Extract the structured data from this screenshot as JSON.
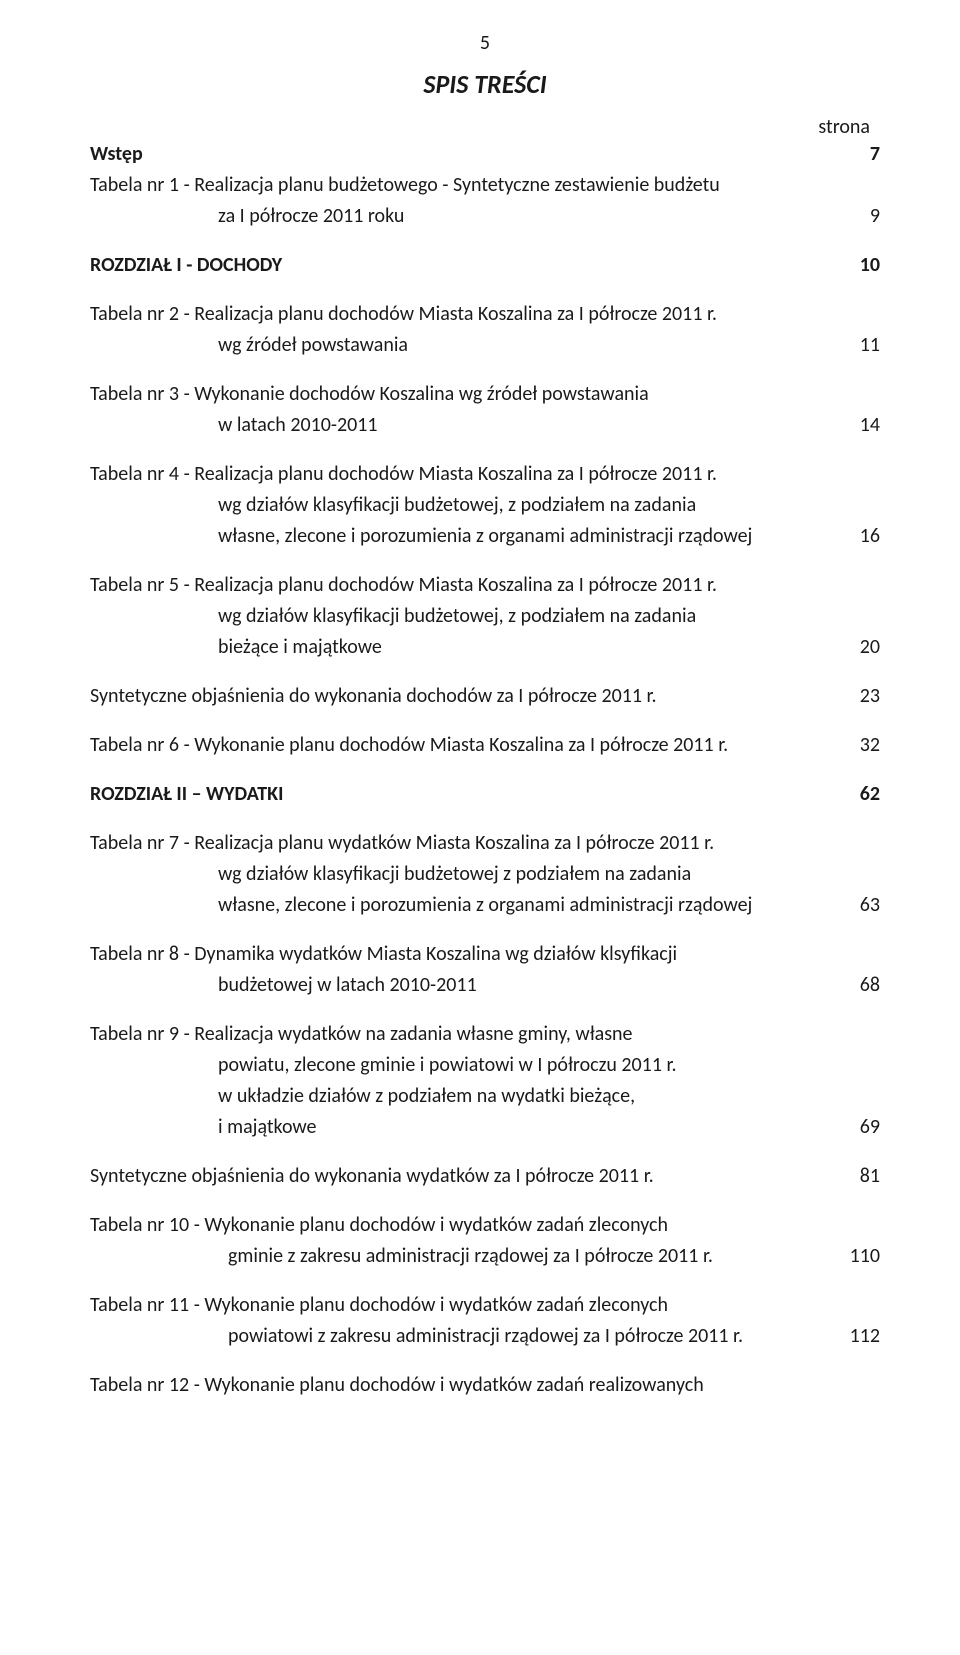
{
  "page_number_top": "5",
  "title": "SPIS TREŚCI",
  "strona_label": "strona",
  "entries": [
    {
      "text": "Wstęp",
      "page": "7",
      "bold": true
    },
    {
      "text": "Tabela nr 1 - Realizacja planu budżetowego - Syntetyczne zestawienie budżetu",
      "page": ""
    },
    {
      "text": "za I półrocze 2011 roku",
      "page": "9",
      "indent": true,
      "gap_after": true
    },
    {
      "text": "ROZDZIAŁ   I - DOCHODY",
      "page": "10",
      "bold": true,
      "gap_after": true
    },
    {
      "text": "Tabela nr 2 - Realizacja planu dochodów Miasta Koszalina za I półrocze 2011 r.",
      "page": ""
    },
    {
      "text": "wg źródeł powstawania",
      "page": "11",
      "indent": true,
      "gap_after": true
    },
    {
      "text": "Tabela nr 3 - Wykonanie dochodów Koszalina wg źródeł powstawania",
      "page": ""
    },
    {
      "text": "w latach 2010-2011",
      "page": "14",
      "indent": true,
      "gap_after": true
    },
    {
      "text": "Tabela nr 4 - Realizacja planu dochodów  Miasta Koszalina za I półrocze 2011 r.",
      "page": ""
    },
    {
      "text": "wg  działów klasyfikacji budżetowej, z podziałem na zadania",
      "page": "",
      "indent": true
    },
    {
      "text": "własne, zlecone i porozumienia z organami administracji rządowej",
      "page": "16",
      "indent": true,
      "gap_after": true
    },
    {
      "text": "Tabela nr 5 - Realizacja planu dochodów  Miasta Koszalina za I półrocze 2011 r.",
      "page": ""
    },
    {
      "text": "wg  działów klasyfikacji budżetowej, z podziałem na zadania",
      "page": "",
      "indent": true
    },
    {
      "text": "bieżące i majątkowe",
      "page": "20",
      "indent": true,
      "gap_after": true
    },
    {
      "text": "Syntetyczne objaśnienia  do  wykonania dochodów za I półrocze 2011 r.",
      "page": "23",
      "gap_after": true
    },
    {
      "text": "Tabela nr 6 - Wykonanie planu dochodów Miasta Koszalina za I półrocze  2011 r.",
      "page": "32",
      "gap_after": true
    },
    {
      "text": "ROZDZIAŁ  II – WYDATKI",
      "page": "62",
      "bold": true,
      "gap_after": true
    },
    {
      "text": "Tabela nr 7 - Realizacja planu wydatków Miasta Koszalina za I półrocze 2011 r.",
      "page": ""
    },
    {
      "text": "wg  działów klasyfikacji budżetowej  z podziałem na zadania",
      "page": "",
      "indent": true
    },
    {
      "text": "własne, zlecone i porozumienia z organami administracji rządowej",
      "page": "63",
      "indent": true,
      "gap_after": true
    },
    {
      "text": "Tabela nr 8 - Dynamika wydatków Miasta Koszalina wg działów klsyfikacji",
      "page": ""
    },
    {
      "text": "budżetowej w latach 2010-2011",
      "page": "68",
      "indent": true,
      "gap_after": true
    },
    {
      "text": "Tabela nr 9 - Realizacja wydatków na zadania własne gminy, własne",
      "page": ""
    },
    {
      "text": "powiatu, zlecone gminie i powiatowi w I półroczu 2011 r.",
      "page": "",
      "indent": true
    },
    {
      "text": "w układzie działów z podziałem na wydatki bieżące,",
      "page": "",
      "indent": true
    },
    {
      "text": "i majątkowe",
      "page": "69",
      "indent": true,
      "gap_after": true
    },
    {
      "text": "Syntetyczne objaśnienia  do wykonania wydatków za I półrocze 2011 r.",
      "page": "81",
      "gap_after": true
    },
    {
      "text": "Tabela nr 10 - Wykonanie planu dochodów i wydatków zadań zleconych",
      "page": ""
    },
    {
      "text": "gminie z zakresu administracji rządowej  za I półrocze 2011 r.",
      "page": "110",
      "indent2": true,
      "gap_after": true
    },
    {
      "text": "Tabela nr 11 - Wykonanie planu dochodów i wydatków zadań zleconych",
      "page": ""
    },
    {
      "text": "powiatowi  z zakresu administracji rządowej za I półrocze 2011 r.",
      "page": "112",
      "indent2": true,
      "gap_after": true
    },
    {
      "text": "Tabela nr 12 - Wykonanie planu dochodów i wydatków zadań realizowanych",
      "page": ""
    }
  ]
}
